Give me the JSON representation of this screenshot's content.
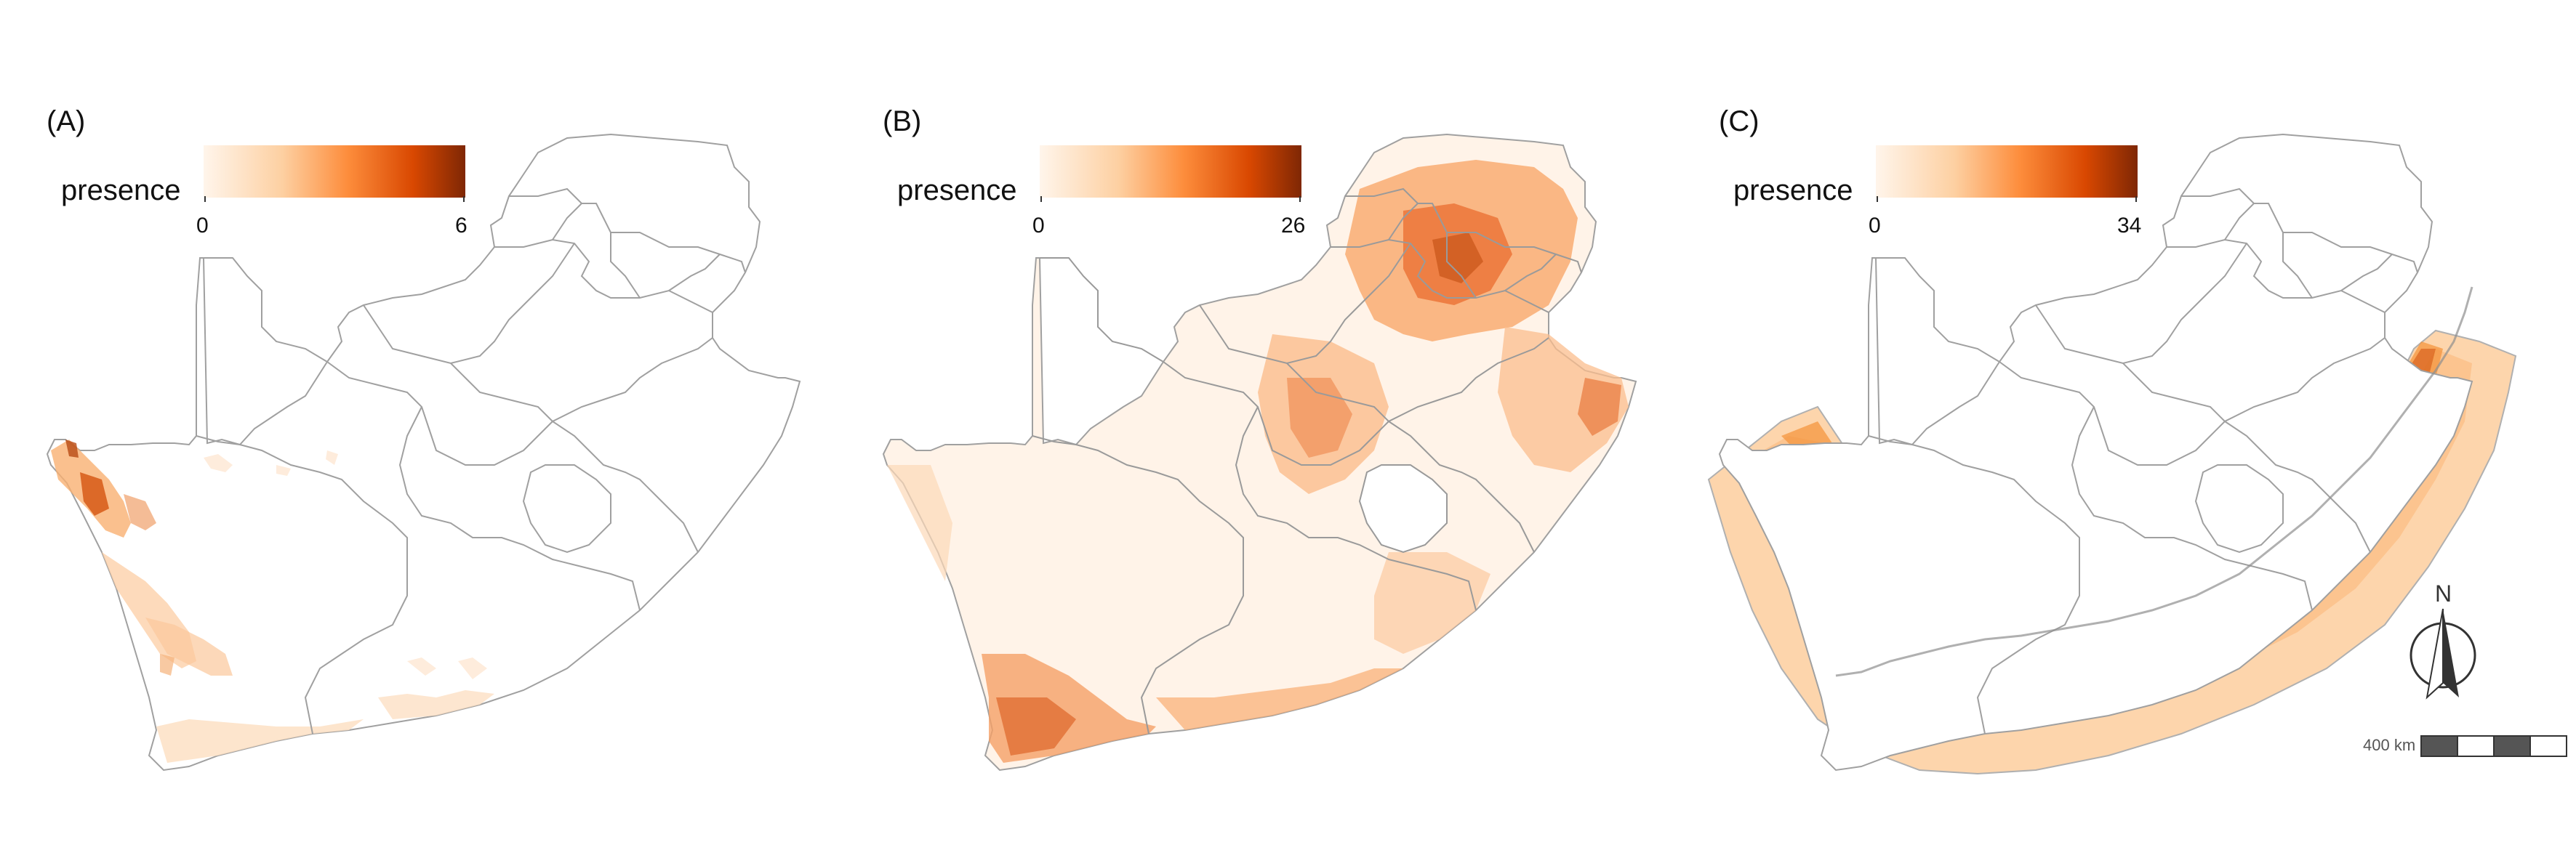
{
  "panels": [
    {
      "label": "(A)",
      "legend": {
        "title": "presence",
        "min": "0",
        "max": "6"
      }
    },
    {
      "label": "(B)",
      "legend": {
        "title": "presence",
        "min": "0",
        "max": "26"
      }
    },
    {
      "label": "(C)",
      "legend": {
        "title": "presence",
        "min": "0",
        "max": "34"
      }
    }
  ],
  "north_arrow": {
    "label": "N"
  },
  "scale_bar": {
    "label": "400 km"
  },
  "colors": {
    "ramp": [
      "#fff5eb",
      "#fdd0a2",
      "#fd8d3c",
      "#d94801",
      "#7f2704"
    ],
    "boundary": "#a0a0a0",
    "marine_light": "#fdd5ac",
    "marine_dark": "#f08c3c"
  }
}
